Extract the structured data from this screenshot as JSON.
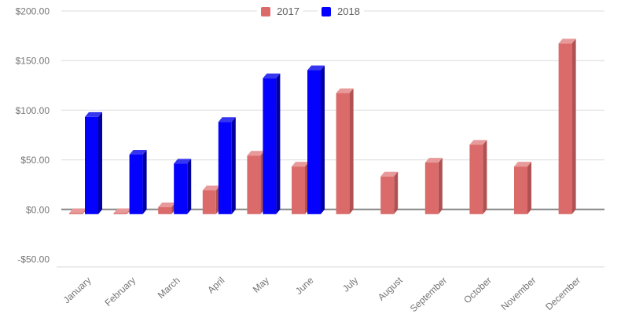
{
  "chart_data": {
    "type": "bar",
    "style": "3d-column",
    "title": "",
    "xlabel": "",
    "ylabel": "",
    "categories": [
      "January",
      "February",
      "March",
      "April",
      "May",
      "June",
      "July",
      "August",
      "September",
      "October",
      "November",
      "December"
    ],
    "series": [
      {
        "name": "2017",
        "color": "#db6b6b",
        "color_top": "#e89a9a",
        "color_side": "#b05252",
        "values": [
          1,
          1,
          7,
          24,
          59,
          48,
          122,
          38,
          52,
          70,
          48,
          172
        ]
      },
      {
        "name": "2018",
        "color": "#0402fc",
        "color_top": "#3636f0",
        "color_side": "#0000a0",
        "values": [
          98,
          60,
          51,
          93,
          137,
          145,
          null,
          null,
          null,
          null,
          null,
          null
        ]
      }
    ],
    "ylim": [
      -50,
      200
    ],
    "yticks": [
      {
        "value": 200,
        "label": "$200.00"
      },
      {
        "value": 150,
        "label": "$150.00"
      },
      {
        "value": 100,
        "label": "$100.00"
      },
      {
        "value": 50,
        "label": "$50.00"
      },
      {
        "value": 0,
        "label": "$0.00"
      },
      {
        "value": -50,
        "label": "-$50.00"
      }
    ],
    "legend_position": "top-center",
    "grid": true
  },
  "legend": {
    "items": [
      {
        "label": "2017"
      },
      {
        "label": "2018"
      }
    ]
  },
  "colors": {
    "gridline": "#e3e3e3",
    "zero_axis": "#858585",
    "floor_edge": "#e0e0e0",
    "tick_label": "#757575",
    "legend_text": "#616161",
    "background": "#ffffff"
  }
}
